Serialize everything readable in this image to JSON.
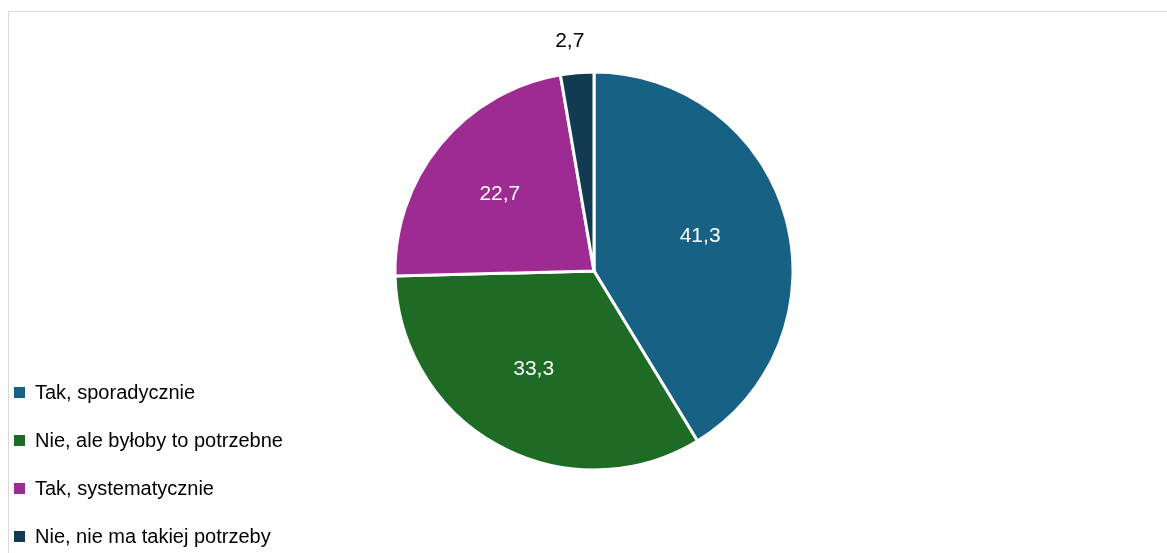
{
  "chart_data": {
    "type": "pie",
    "categories": [
      "Tak, sporadycznie",
      "Nie, ale byłoby to potrzebne",
      "Tak, systematycznie",
      "Nie, nie ma takiej potrzeby"
    ],
    "values": [
      41.3,
      33.3,
      22.7,
      2.7
    ],
    "value_labels": [
      "41,3",
      "33,3",
      "22,7",
      "2,7"
    ],
    "colors": [
      "#176185",
      "#1d6b25",
      "#9e2b91",
      "#123b52"
    ],
    "legend": "bottom left"
  }
}
